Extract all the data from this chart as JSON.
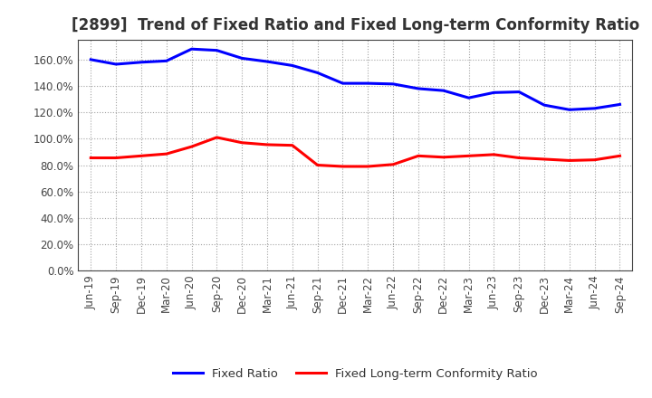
{
  "title": "[2899]  Trend of Fixed Ratio and Fixed Long-term Conformity Ratio",
  "x_labels": [
    "Jun-19",
    "Sep-19",
    "Dec-19",
    "Mar-20",
    "Jun-20",
    "Sep-20",
    "Dec-20",
    "Mar-21",
    "Jun-21",
    "Sep-21",
    "Dec-21",
    "Mar-22",
    "Jun-22",
    "Sep-22",
    "Dec-22",
    "Mar-23",
    "Jun-23",
    "Sep-23",
    "Dec-23",
    "Mar-24",
    "Jun-24",
    "Sep-24"
  ],
  "fixed_ratio": [
    1.6,
    1.565,
    1.58,
    1.59,
    1.68,
    1.67,
    1.61,
    1.585,
    1.555,
    1.5,
    1.42,
    1.42,
    1.415,
    1.38,
    1.365,
    1.31,
    1.35,
    1.355,
    1.255,
    1.22,
    1.23,
    1.26
  ],
  "fixed_lt_ratio": [
    0.855,
    0.855,
    0.87,
    0.885,
    0.94,
    1.01,
    0.97,
    0.955,
    0.95,
    0.8,
    0.79,
    0.79,
    0.805,
    0.87,
    0.86,
    0.87,
    0.88,
    0.855,
    0.845,
    0.835,
    0.84,
    0.87
  ],
  "fixed_ratio_color": "#0000FF",
  "fixed_lt_ratio_color": "#FF0000",
  "ylim": [
    0.0,
    1.75
  ],
  "yticks": [
    0.0,
    0.2,
    0.4,
    0.6,
    0.8,
    1.0,
    1.2,
    1.4,
    1.6
  ],
  "background_color": "#FFFFFF",
  "plot_bg_color": "#FFFFFF",
  "grid_color": "#999999",
  "legend_fixed_ratio": "Fixed Ratio",
  "legend_fixed_lt_ratio": "Fixed Long-term Conformity Ratio",
  "title_fontsize": 12,
  "tick_fontsize": 8.5,
  "legend_fontsize": 9.5,
  "line_width": 2.2
}
